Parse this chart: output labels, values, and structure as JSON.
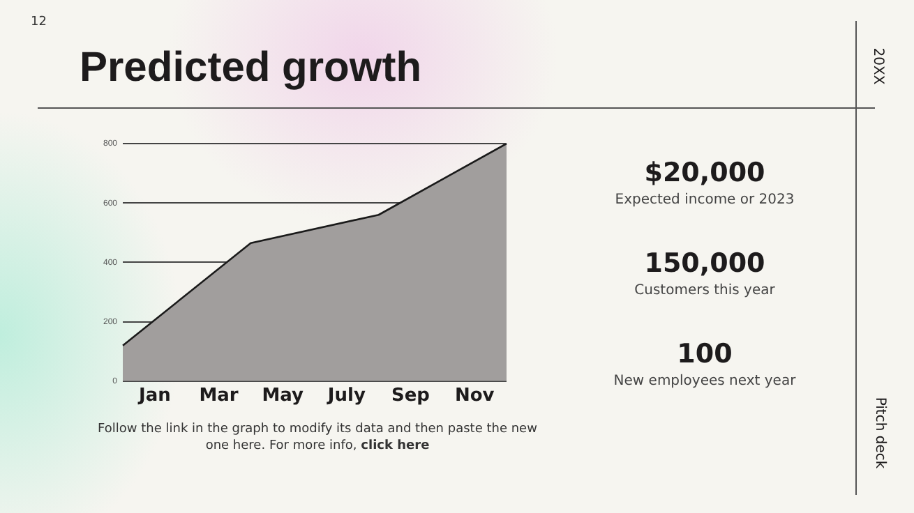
{
  "chart_data": {
    "type": "area",
    "title": "Predicted growth",
    "categories": [
      null,
      "Jan",
      null,
      "Mar",
      null,
      "May",
      null,
      "July",
      null,
      "Sep",
      null,
      "Nov",
      null
    ],
    "series": [
      {
        "color": "#a19e9d",
        "values": [
          120,
          null,
          null,
          null,
          465,
          null,
          null,
          null,
          560,
          null,
          null,
          null,
          800
        ]
      }
    ],
    "ylim": [
      0,
      800
    ],
    "yticks": [
      0,
      200,
      400,
      600,
      800
    ],
    "grid": "y",
    "legend": false,
    "marker": "none",
    "line_style": "solid",
    "annotations": [
      "12",
      "20XX",
      "Pitch deck",
      "$20,000",
      "Expected income or 2023",
      "150,000",
      "Customers this year",
      "100",
      "New employees next year",
      "Follow the link in the graph to modify its data and then paste the new one here. For more info,",
      "click here"
    ]
  }
}
